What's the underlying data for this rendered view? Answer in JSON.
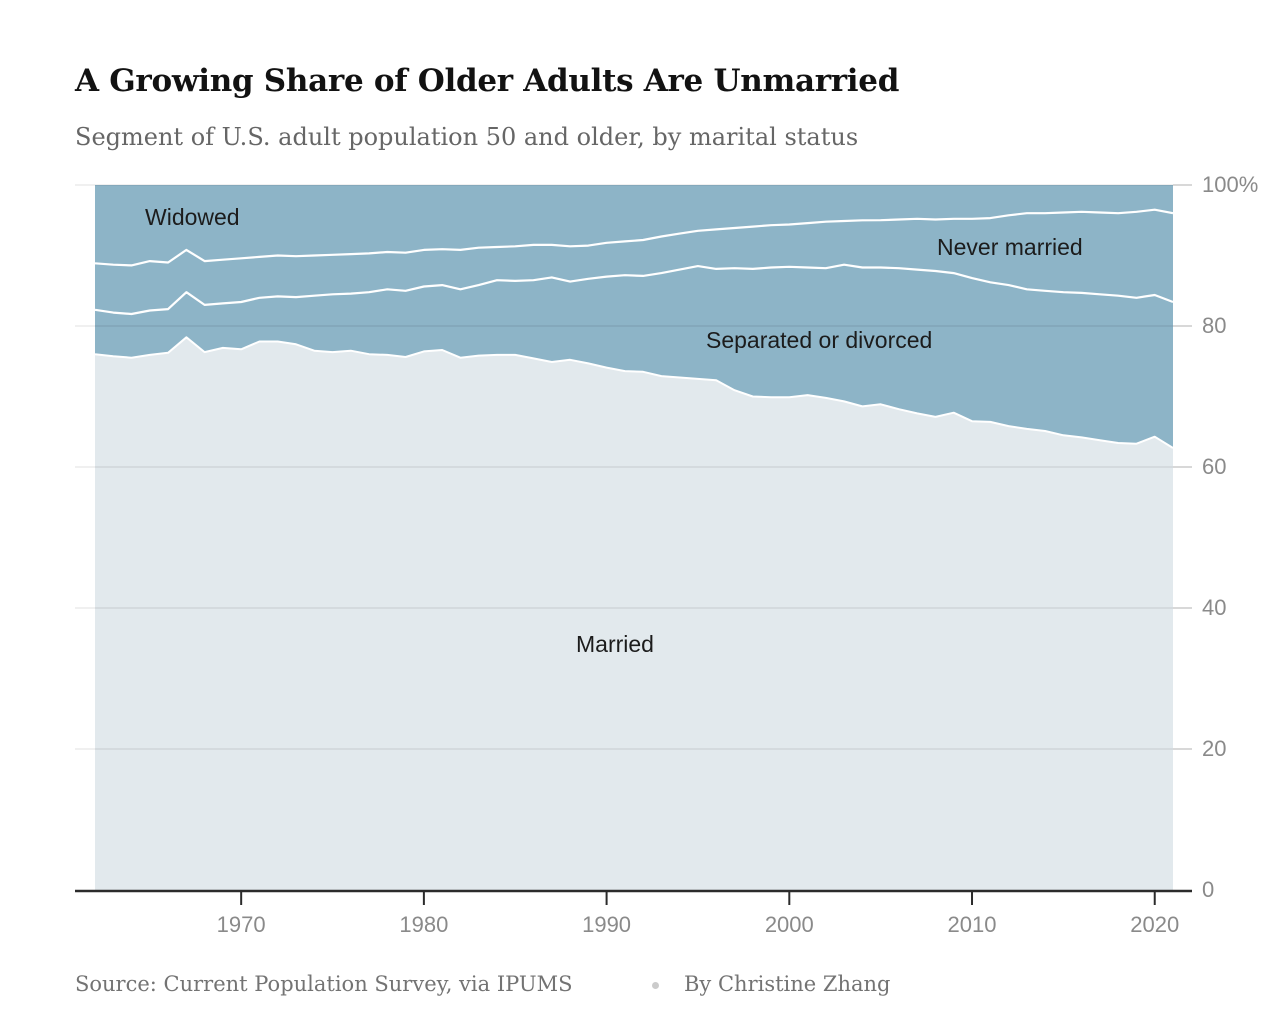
{
  "header": {
    "title": "A Growing Share of Older Adults Are Unmarried",
    "subtitle": "Segment of U.S. adult population 50 and older, by marital status"
  },
  "footer": {
    "source": "Source: Current Population Survey, via IPUMS",
    "separator_icon": "bullet-dot",
    "byline": "By Christine Zhang"
  },
  "chart_data": {
    "type": "area",
    "stacked": true,
    "unit": "percent of adults 50 and older",
    "title": "A Growing Share of Older Adults Are Unmarried",
    "xlabel": "",
    "ylabel": "",
    "ylim": [
      0,
      100
    ],
    "x_range": [
      1962,
      2021
    ],
    "grid": true,
    "legend_position": "inline-labels",
    "colors": {
      "married_fill": "#e2e9ed",
      "unmarried_fill": "#8db4c7",
      "boundary_line": "#ffffff",
      "axis_line": "#2b2b2b",
      "tick_label": "#8a8a8a"
    },
    "years": [
      1962,
      1963,
      1964,
      1965,
      1966,
      1967,
      1968,
      1969,
      1970,
      1971,
      1972,
      1973,
      1974,
      1975,
      1976,
      1977,
      1978,
      1979,
      1980,
      1981,
      1982,
      1983,
      1984,
      1985,
      1986,
      1987,
      1988,
      1989,
      1990,
      1991,
      1992,
      1993,
      1994,
      1995,
      1996,
      1997,
      1998,
      1999,
      2000,
      2001,
      2002,
      2003,
      2004,
      2005,
      2006,
      2007,
      2008,
      2009,
      2010,
      2011,
      2012,
      2013,
      2014,
      2015,
      2016,
      2017,
      2018,
      2019,
      2020,
      2021
    ],
    "series": [
      {
        "name": "Married",
        "color": "#e2e9ed",
        "values": [
          76.0,
          75.7,
          75.5,
          75.9,
          76.2,
          78.4,
          76.3,
          76.9,
          76.7,
          77.8,
          77.8,
          77.4,
          76.5,
          76.3,
          76.5,
          76.0,
          75.9,
          75.6,
          76.4,
          76.6,
          75.5,
          75.8,
          75.9,
          75.9,
          75.4,
          74.9,
          75.2,
          74.7,
          74.1,
          73.6,
          73.5,
          72.9,
          72.7,
          72.5,
          72.3,
          70.9,
          70.0,
          69.9,
          69.9,
          70.2,
          69.8,
          69.3,
          68.6,
          68.9,
          68.2,
          67.6,
          67.1,
          67.7,
          66.5,
          66.4,
          65.8,
          65.4,
          65.1,
          64.5,
          64.2,
          63.8,
          63.4,
          63.3,
          64.3,
          62.7
        ]
      },
      {
        "name": "Separated or divorced",
        "color": "#8db4c7",
        "values": [
          6.3,
          6.2,
          6.2,
          6.3,
          6.2,
          6.4,
          6.7,
          6.3,
          6.7,
          6.2,
          6.4,
          6.7,
          7.8,
          8.2,
          8.1,
          8.8,
          9.3,
          9.4,
          9.2,
          9.2,
          9.7,
          10.0,
          10.6,
          10.5,
          11.1,
          12.0,
          11.1,
          12.0,
          12.9,
          13.6,
          13.6,
          14.6,
          15.3,
          16.0,
          15.8,
          17.3,
          18.1,
          18.4,
          18.5,
          18.1,
          18.4,
          19.4,
          19.7,
          19.4,
          20.0,
          20.4,
          20.7,
          19.8,
          20.3,
          19.8,
          20.0,
          19.8,
          19.9,
          20.3,
          20.5,
          20.7,
          20.9,
          20.7,
          20.1,
          20.7
        ]
      },
      {
        "name": "Never married",
        "color": "#8db4c7",
        "values": [
          6.6,
          6.8,
          6.9,
          7.0,
          6.6,
          6.0,
          6.2,
          6.2,
          6.2,
          5.8,
          5.8,
          5.8,
          5.7,
          5.6,
          5.6,
          5.5,
          5.3,
          5.4,
          5.2,
          5.1,
          5.6,
          5.3,
          4.7,
          4.9,
          5.0,
          4.6,
          5.0,
          4.7,
          4.8,
          4.8,
          5.1,
          5.2,
          5.1,
          5.0,
          5.6,
          5.7,
          6.0,
          6.0,
          6.0,
          6.3,
          6.6,
          6.2,
          6.7,
          6.7,
          6.9,
          7.2,
          7.3,
          7.7,
          8.4,
          9.1,
          9.9,
          10.8,
          11.0,
          11.3,
          11.5,
          11.6,
          11.7,
          12.2,
          12.1,
          12.6
        ]
      },
      {
        "name": "Widowed",
        "color": "#8db4c7",
        "values": [
          11.1,
          11.3,
          11.4,
          10.8,
          11.0,
          9.2,
          10.8,
          10.6,
          10.4,
          10.2,
          10.0,
          10.1,
          10.0,
          9.9,
          9.8,
          9.7,
          9.5,
          9.6,
          9.2,
          9.1,
          9.2,
          8.9,
          8.8,
          8.7,
          8.5,
          8.5,
          8.7,
          8.6,
          8.2,
          8.0,
          7.8,
          7.3,
          6.9,
          6.5,
          6.3,
          6.1,
          5.9,
          5.7,
          5.6,
          5.4,
          5.2,
          5.1,
          5.0,
          5.0,
          4.9,
          4.8,
          4.9,
          4.8,
          4.8,
          4.7,
          4.3,
          4.0,
          4.0,
          3.9,
          3.8,
          3.9,
          4.0,
          3.8,
          3.5,
          4.0
        ]
      }
    ],
    "y_ticks": {
      "values": [
        0,
        20,
        40,
        60,
        80,
        100
      ],
      "labels": [
        "0",
        "20",
        "40",
        "60",
        "80",
        "100%"
      ]
    },
    "x_ticks": {
      "values": [
        1970,
        1980,
        1990,
        2000,
        2010,
        2020
      ],
      "labels": [
        "1970",
        "1980",
        "1990",
        "2000",
        "2010",
        "2020"
      ]
    }
  }
}
